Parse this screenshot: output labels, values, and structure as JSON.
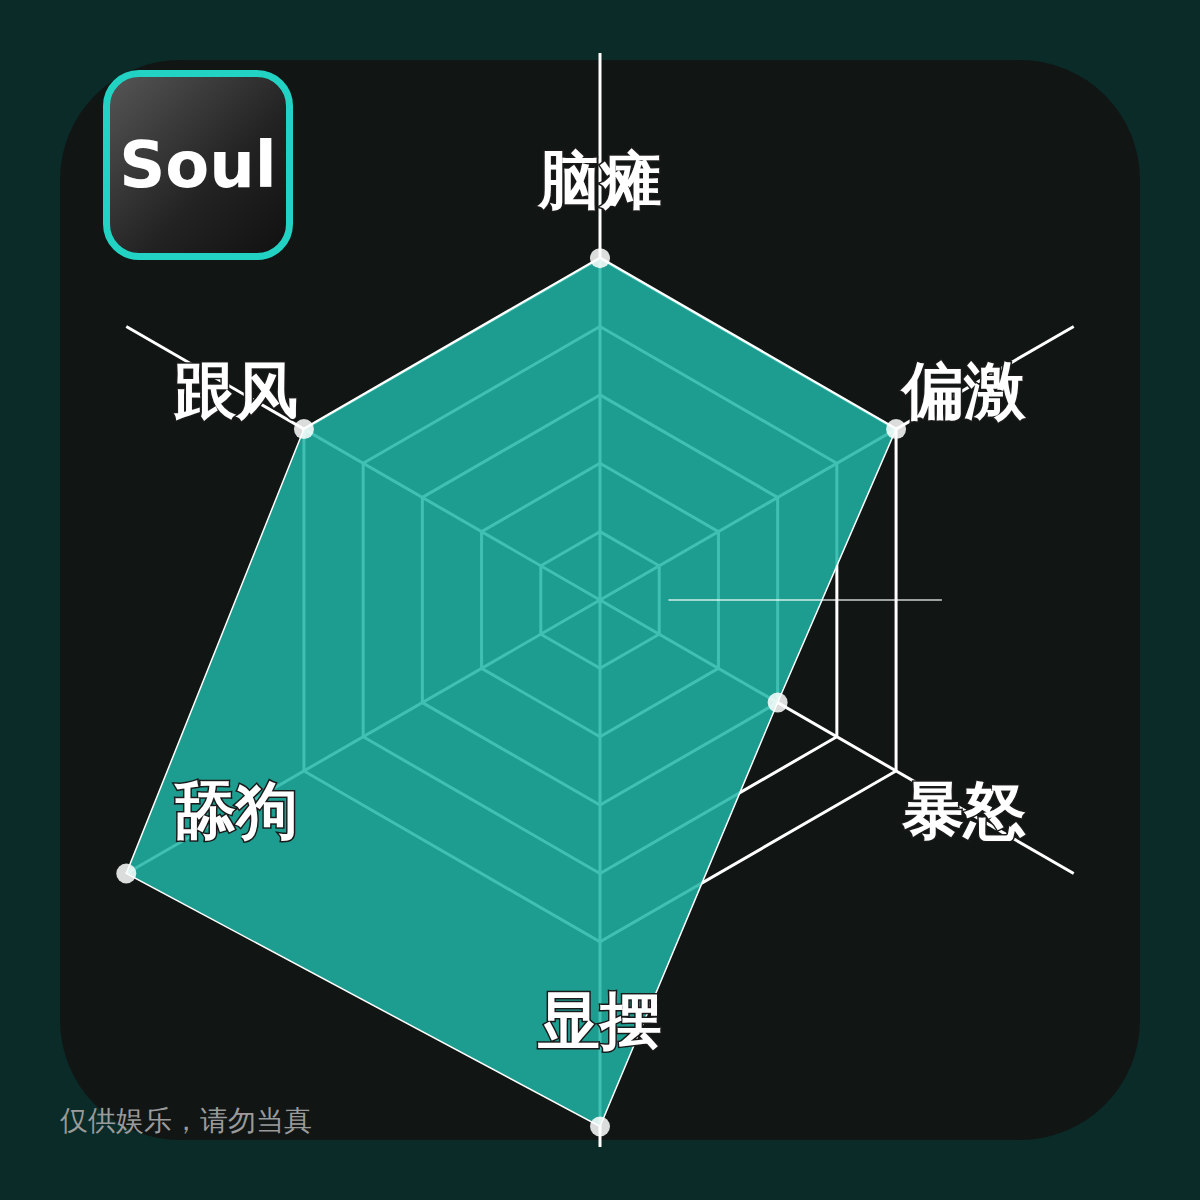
{
  "chart_data": {
    "type": "radar",
    "categories": [
      "脑瘫",
      "偏激",
      "暴怒",
      "显摆",
      "舔狗",
      "跟风"
    ],
    "values": [
      5,
      5,
      3,
      7.7,
      8,
      5
    ],
    "ylim": [
      0,
      8
    ],
    "yticks": [
      1,
      2,
      3,
      4,
      5
    ],
    "tick_labels": false,
    "grid": true,
    "color": "#1fb5a6",
    "marker": "circle",
    "annotations": [
      "Soul",
      "仅供娱乐，请勿当真"
    ]
  }
}
